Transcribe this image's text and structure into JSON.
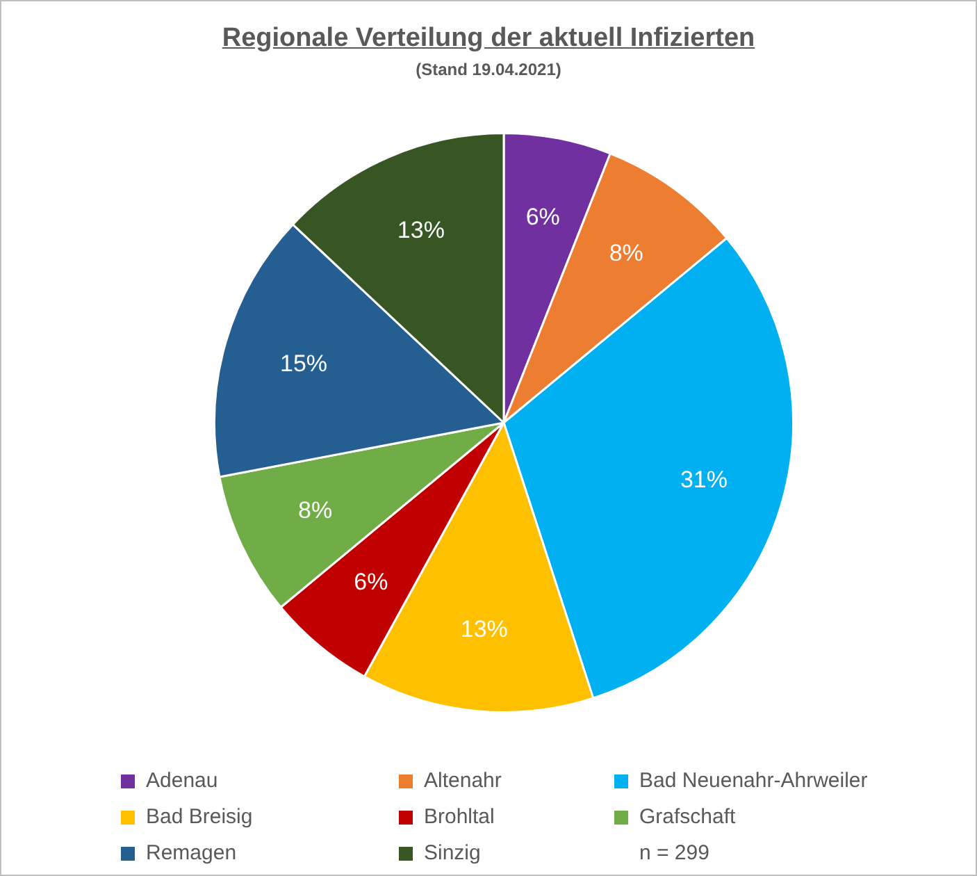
{
  "chart_data": {
    "type": "pie",
    "title": "Regionale Verteilung der aktuell Infizierten",
    "subtitle": "(Stand 19.04.2021)",
    "categories": [
      "Adenau",
      "Altenahr",
      "Bad Neuenahr-Ahrweiler",
      "Bad Breisig",
      "Brohltal",
      "Grafschaft",
      "Remagen",
      "Sinzig"
    ],
    "values": [
      6,
      8,
      31,
      13,
      6,
      8,
      15,
      13
    ],
    "colors": [
      "#7030a0",
      "#ed7d31",
      "#00b0f0",
      "#ffc000",
      "#c00000",
      "#70ad47",
      "#255e91",
      "#375623"
    ],
    "value_labels": [
      "6%",
      "8%",
      "31%",
      "13%",
      "6%",
      "8%",
      "15%",
      "13%"
    ],
    "legend": "bottom",
    "annotations": [
      "n = 299"
    ]
  }
}
